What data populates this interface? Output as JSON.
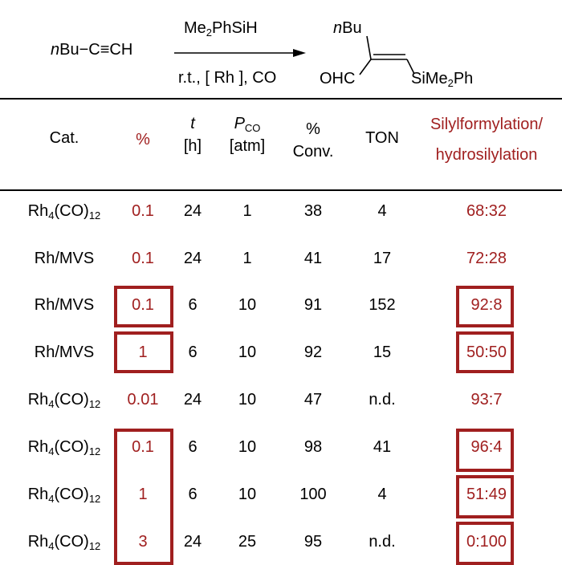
{
  "scheme": {
    "reactant_prefix": "n",
    "reactant_rest": "Bu",
    "triple_bond": "−C≡CH",
    "reagent_main": "Me",
    "reagent_sub": "2",
    "reagent_rest": "PhSiH",
    "conditions": "r.t., [ Rh ], CO",
    "product_nbu_prefix": "n",
    "product_nbu_rest": "Bu",
    "product_cho": "OHC",
    "product_silyl_main": "SiMe",
    "product_silyl_sub": "2",
    "product_silyl_rest": "Ph"
  },
  "headers": {
    "cat": "Cat.",
    "pct": "%",
    "t_sym": "t",
    "t_unit": "[h]",
    "p_sym": "P",
    "p_sub": "CO",
    "p_unit": "[atm]",
    "conv_pct": "%",
    "conv": "Conv.",
    "ton": "TON",
    "ratio_line1": "Silylformylation/",
    "ratio_line2": "hydrosilylation"
  },
  "rows": [
    {
      "cat_main": "Rh",
      "cat_sub1": "4",
      "cat_mid": "(CO)",
      "cat_sub2": "12",
      "pct": "0.1",
      "t": "24",
      "p": "1",
      "conv": "38",
      "ton": "4",
      "ratio": "68:32"
    },
    {
      "cat_main": "Rh/MVS",
      "cat_sub1": "",
      "cat_mid": "",
      "cat_sub2": "",
      "pct": "0.1",
      "t": "24",
      "p": "1",
      "conv": "41",
      "ton": "17",
      "ratio": "72:28"
    },
    {
      "cat_main": "Rh/MVS",
      "cat_sub1": "",
      "cat_mid": "",
      "cat_sub2": "",
      "pct": "0.1",
      "t": "6",
      "p": "10",
      "conv": "91",
      "ton": "152",
      "ratio": "92:8"
    },
    {
      "cat_main": "Rh/MVS",
      "cat_sub1": "",
      "cat_mid": "",
      "cat_sub2": "",
      "pct": "1",
      "t": "6",
      "p": "10",
      "conv": "92",
      "ton": "15",
      "ratio": "50:50"
    },
    {
      "cat_main": "Rh",
      "cat_sub1": "4",
      "cat_mid": "(CO)",
      "cat_sub2": "12",
      "pct": "0.01",
      "t": "24",
      "p": "10",
      "conv": "47",
      "ton": "n.d.",
      "ratio": "93:7"
    },
    {
      "cat_main": "Rh",
      "cat_sub1": "4",
      "cat_mid": "(CO)",
      "cat_sub2": "12",
      "pct": "0.1",
      "t": "6",
      "p": "10",
      "conv": "98",
      "ton": "41",
      "ratio": "96:4"
    },
    {
      "cat_main": "Rh",
      "cat_sub1": "4",
      "cat_mid": "(CO)",
      "cat_sub2": "12",
      "pct": "1",
      "t": "6",
      "p": "10",
      "conv": "100",
      "ton": "4",
      "ratio": "51:49"
    },
    {
      "cat_main": "Rh",
      "cat_sub1": "4",
      "cat_mid": "(CO)",
      "cat_sub2": "12",
      "pct": "3",
      "t": "24",
      "p": "25",
      "conv": "95",
      "ton": "n.d.",
      "ratio": "0:100"
    }
  ],
  "colors": {
    "accent": "#a01f1f",
    "text": "#000000"
  }
}
